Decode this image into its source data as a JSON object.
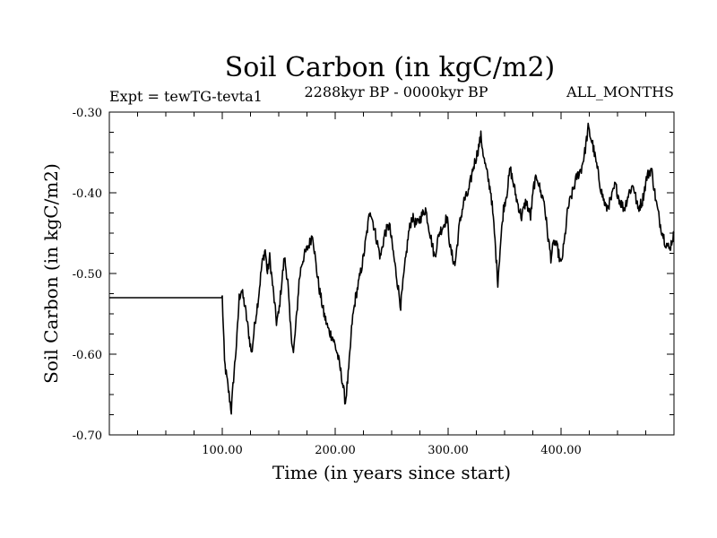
{
  "chart_data": {
    "type": "line",
    "title": "Soil Carbon (in kgC/m2)",
    "subtitle": "2288kyr BP - 0000kyr BP",
    "left_note": "Expt = tewTG-tevta1",
    "right_note": "ALL_MONTHS",
    "xlabel": "Time (in years since start)",
    "ylabel": "Soil Carbon (in kgC/m2)",
    "xlim": [
      0,
      500
    ],
    "ylim": [
      -0.7,
      -0.3
    ],
    "x_ticks": [
      100,
      200,
      300,
      400
    ],
    "x_tick_labels": [
      "100.00",
      "200.00",
      "300.00",
      "400.00"
    ],
    "y_ticks": [
      -0.7,
      -0.6,
      -0.5,
      -0.4,
      -0.3
    ],
    "y_tick_labels": [
      "-0.70",
      "-0.60",
      "-0.50",
      "-0.40",
      "-0.30"
    ],
    "grid": false,
    "series": [
      {
        "name": "Soil Carbon",
        "color": "#000000",
        "x": [
          0,
          99,
          100,
          102,
          105,
          108,
          110,
          113,
          115,
          117,
          120,
          123,
          126,
          129,
          132,
          135,
          138,
          140,
          142,
          145,
          148,
          150,
          152,
          155,
          158,
          160,
          163,
          166,
          168,
          170,
          172,
          175,
          178,
          180,
          183,
          186,
          190,
          194,
          198,
          202,
          206,
          209,
          212,
          215,
          218,
          221,
          225,
          228,
          231,
          234,
          237,
          240,
          244,
          248,
          251,
          255,
          258,
          261,
          265,
          268,
          272,
          276,
          280,
          284,
          288,
          292,
          296,
          299,
          302,
          306,
          310,
          314,
          318,
          322,
          326,
          329,
          332,
          335,
          338,
          341,
          344,
          346,
          349,
          352,
          355,
          358,
          361,
          365,
          369,
          373,
          376,
          379,
          382,
          385,
          388,
          391,
          394,
          397,
          400,
          403,
          406,
          410,
          414,
          418,
          421,
          424,
          428,
          432,
          436,
          440,
          444,
          448,
          452,
          456,
          460,
          464,
          468,
          472,
          476,
          480,
          484,
          488,
          492,
          496,
          500
        ],
        "y": [
          -0.53,
          -0.53,
          -0.53,
          -0.61,
          -0.64,
          -0.67,
          -0.63,
          -0.58,
          -0.53,
          -0.52,
          -0.54,
          -0.57,
          -0.6,
          -0.56,
          -0.53,
          -0.49,
          -0.47,
          -0.5,
          -0.48,
          -0.52,
          -0.56,
          -0.55,
          -0.52,
          -0.48,
          -0.51,
          -0.56,
          -0.6,
          -0.55,
          -0.51,
          -0.49,
          -0.48,
          -0.47,
          -0.46,
          -0.45,
          -0.49,
          -0.52,
          -0.55,
          -0.57,
          -0.58,
          -0.6,
          -0.63,
          -0.66,
          -0.62,
          -0.56,
          -0.53,
          -0.51,
          -0.48,
          -0.45,
          -0.42,
          -0.44,
          -0.46,
          -0.48,
          -0.45,
          -0.44,
          -0.47,
          -0.51,
          -0.54,
          -0.5,
          -0.45,
          -0.43,
          -0.44,
          -0.43,
          -0.42,
          -0.45,
          -0.48,
          -0.45,
          -0.44,
          -0.43,
          -0.47,
          -0.49,
          -0.44,
          -0.41,
          -0.4,
          -0.37,
          -0.35,
          -0.33,
          -0.36,
          -0.38,
          -0.4,
          -0.45,
          -0.51,
          -0.47,
          -0.42,
          -0.4,
          -0.37,
          -0.39,
          -0.41,
          -0.43,
          -0.41,
          -0.43,
          -0.39,
          -0.38,
          -0.4,
          -0.41,
          -0.45,
          -0.48,
          -0.46,
          -0.47,
          -0.49,
          -0.46,
          -0.42,
          -0.4,
          -0.38,
          -0.37,
          -0.35,
          -0.32,
          -0.34,
          -0.37,
          -0.4,
          -0.42,
          -0.41,
          -0.39,
          -0.41,
          -0.42,
          -0.4,
          -0.39,
          -0.42,
          -0.41,
          -0.38,
          -0.37,
          -0.41,
          -0.44,
          -0.46,
          -0.47,
          -0.45
        ]
      }
    ]
  }
}
